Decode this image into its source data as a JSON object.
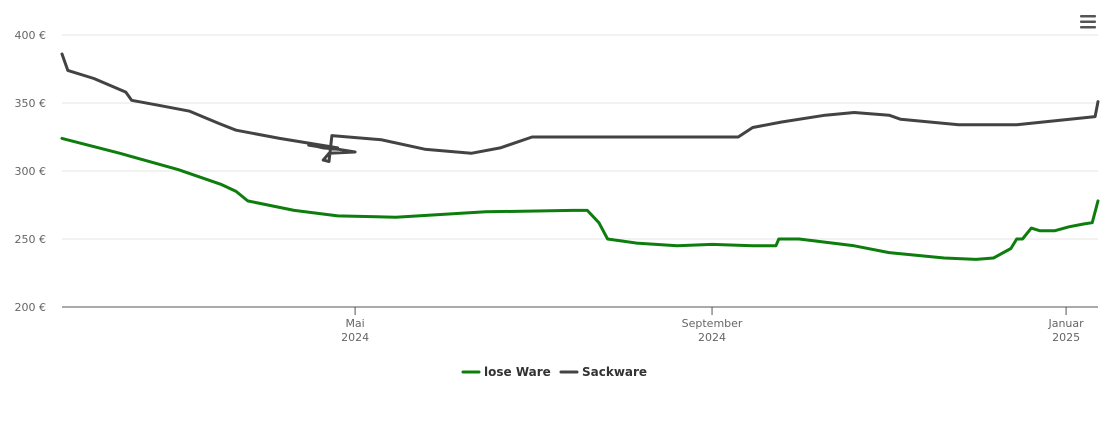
{
  "colors": {
    "lose_ware": "#0d7d0d",
    "sackware": "#434343",
    "gridline": "#e6e6e6",
    "axis": "#555555",
    "tick_text": "#666666",
    "menu_icon": "#555555"
  },
  "menu_icon": "hamburger-menu-icon",
  "chart_data": {
    "type": "line",
    "title": "",
    "xlabel": "",
    "ylabel": "",
    "ylim": [
      200,
      400
    ],
    "yticks": [
      200,
      250,
      300,
      350,
      400
    ],
    "ytick_labels": [
      "200 €",
      "250 €",
      "300 €",
      "350 €",
      "400 €"
    ],
    "xlim": [
      "2024-01-21",
      "2025-01-12"
    ],
    "xticks": [
      {
        "date": "2024-05-01",
        "label1": "Mai",
        "label2": "2024"
      },
      {
        "date": "2024-09-01",
        "label1": "September",
        "label2": "2024"
      },
      {
        "date": "2025-01-01",
        "label1": "Januar",
        "label2": "2025"
      }
    ],
    "grid": true,
    "legend": "bottom-center",
    "series": [
      {
        "name": "lose Ware",
        "color": "#0d7d0d",
        "points": [
          [
            "2024-01-21",
            324
          ],
          [
            "2024-02-10",
            313
          ],
          [
            "2024-03-01",
            301
          ],
          [
            "2024-03-16",
            290
          ],
          [
            "2024-03-21",
            285
          ],
          [
            "2024-03-25",
            278
          ],
          [
            "2024-04-10",
            271
          ],
          [
            "2024-04-25",
            267
          ],
          [
            "2024-05-15",
            266
          ],
          [
            "2024-06-15",
            270
          ],
          [
            "2024-07-15",
            271
          ],
          [
            "2024-07-20",
            271
          ],
          [
            "2024-07-24",
            262
          ],
          [
            "2024-07-27",
            250
          ],
          [
            "2024-08-06",
            247
          ],
          [
            "2024-08-20",
            245
          ],
          [
            "2024-09-01",
            246
          ],
          [
            "2024-09-15",
            245
          ],
          [
            "2024-09-23",
            245
          ],
          [
            "2024-09-24",
            250
          ],
          [
            "2024-10-01",
            250
          ],
          [
            "2024-10-20",
            245
          ],
          [
            "2024-11-01",
            240
          ],
          [
            "2024-11-20",
            236
          ],
          [
            "2024-12-01",
            235
          ],
          [
            "2024-12-07",
            236
          ],
          [
            "2024-12-13",
            243
          ],
          [
            "2024-12-15",
            250
          ],
          [
            "2024-12-17",
            250
          ],
          [
            "2024-12-20",
            258
          ],
          [
            "2024-12-23",
            256
          ],
          [
            "2024-12-28",
            256
          ],
          [
            "2025-01-02",
            259
          ],
          [
            "2025-01-07",
            261
          ],
          [
            "2025-01-10",
            262
          ],
          [
            "2025-01-12",
            278
          ]
        ]
      },
      {
        "name": "Sackware",
        "color": "#434343",
        "points": [
          [
            "2024-01-21",
            386
          ],
          [
            "2024-01-23",
            374
          ],
          [
            "2024-02-01",
            368
          ],
          [
            "2024-02-12",
            358
          ],
          [
            "2024-02-14",
            352
          ],
          [
            "2024-02-24",
            348
          ],
          [
            "2024-03-05",
            344
          ],
          [
            "2024-03-15",
            335
          ],
          [
            "2024-03-21",
            330
          ],
          [
            "2024-04-05",
            324
          ],
          [
            "2024-04-25",
            317
          ],
          [
            "2024-04-15",
            319
          ],
          [
            "2024-04-18",
            318
          ],
          [
            "2024-04-20",
            317
          ],
          [
            "2024-04-25",
            316
          ],
          [
            "2024-05-01",
            314
          ],
          [
            "2024-04-22",
            313
          ],
          [
            "2024-04-20",
            308
          ],
          [
            "2024-04-22",
            307
          ],
          [
            "2024-04-23",
            326
          ],
          [
            "2024-05-10",
            323
          ],
          [
            "2024-05-25",
            316
          ],
          [
            "2024-06-10",
            313
          ],
          [
            "2024-06-20",
            317
          ],
          [
            "2024-07-01",
            325
          ],
          [
            "2024-08-01",
            325
          ],
          [
            "2024-09-01",
            325
          ],
          [
            "2024-09-10",
            325
          ],
          [
            "2024-09-15",
            332
          ],
          [
            "2024-09-25",
            336
          ],
          [
            "2024-10-10",
            341
          ],
          [
            "2024-10-20",
            343
          ],
          [
            "2024-11-01",
            341
          ],
          [
            "2024-11-05",
            338
          ],
          [
            "2024-11-25",
            334
          ],
          [
            "2024-12-15",
            334
          ],
          [
            "2025-01-11",
            340
          ],
          [
            "2025-01-12",
            351
          ]
        ]
      }
    ]
  }
}
